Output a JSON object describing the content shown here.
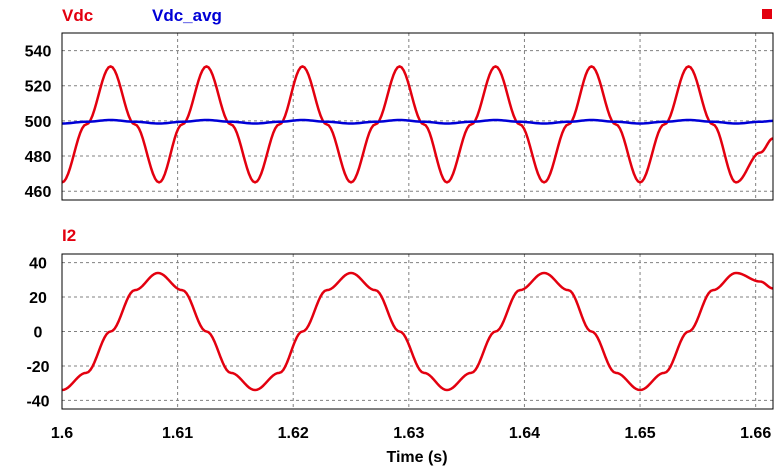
{
  "colors": {
    "vdc": "#e3000f",
    "vdc_avg": "#0000d6",
    "i2": "#e3000f",
    "grid": "#808080",
    "frame": "#000000",
    "background": "#ffffff"
  },
  "chart_data": [
    {
      "type": "line",
      "title": "",
      "xlabel": "",
      "ylabel": "",
      "xlim": [
        1.6,
        1.6615
      ],
      "ylim": [
        455,
        550
      ],
      "yticks": [
        "540",
        "520",
        "500",
        "480",
        "460"
      ],
      "ytick_values": [
        540,
        520,
        500,
        480,
        460
      ],
      "grid": true,
      "legend": "top-left",
      "series": [
        {
          "name": "Vdc",
          "color": "#e3000f",
          "x": [
            1.6,
            1.6021,
            1.6042,
            1.6063,
            1.6084,
            1.6104,
            1.6125,
            1.6146,
            1.6167,
            1.6188,
            1.6208,
            1.6229,
            1.625,
            1.6271,
            1.6292,
            1.6313,
            1.6333,
            1.6354,
            1.6375,
            1.6396,
            1.6417,
            1.6438,
            1.6458,
            1.6479,
            1.65,
            1.6521,
            1.6542,
            1.6563,
            1.6583,
            1.6604,
            1.6615
          ],
          "y": [
            465,
            498,
            531,
            498,
            465,
            498,
            531,
            498,
            465,
            498,
            531,
            498,
            465,
            498,
            531,
            498,
            465,
            498,
            531,
            498,
            465,
            498,
            531,
            498,
            465,
            498,
            531,
            498,
            465,
            482,
            490
          ]
        },
        {
          "name": "Vdc_avg",
          "color": "#0000d6",
          "x": [
            1.6,
            1.6021,
            1.6042,
            1.6063,
            1.6084,
            1.6104,
            1.6125,
            1.6146,
            1.6167,
            1.6188,
            1.6208,
            1.6229,
            1.625,
            1.6271,
            1.6292,
            1.6313,
            1.6333,
            1.6354,
            1.6375,
            1.6396,
            1.6417,
            1.6438,
            1.6458,
            1.6479,
            1.65,
            1.6521,
            1.6542,
            1.6563,
            1.6583,
            1.6604,
            1.6615
          ],
          "y": [
            498.5,
            499.5,
            500.5,
            499.5,
            498.5,
            499.5,
            500.5,
            499.5,
            498.5,
            499.5,
            500.5,
            499.5,
            498.5,
            499.5,
            500.5,
            499.5,
            498.5,
            499.5,
            500.5,
            499.5,
            498.5,
            499.5,
            500.5,
            499.5,
            498.5,
            499.5,
            500.5,
            499.5,
            498.5,
            499.5,
            500
          ]
        }
      ]
    },
    {
      "type": "line",
      "title": "",
      "xlabel": "Time (s)",
      "ylabel": "",
      "xlim": [
        1.6,
        1.6615
      ],
      "ylim": [
        -45,
        45
      ],
      "yticks": [
        "40",
        "20",
        "0",
        "-20",
        "-40"
      ],
      "ytick_values": [
        40,
        20,
        0,
        -20,
        -40
      ],
      "xticks": [
        "1.6",
        "1.61",
        "1.62",
        "1.63",
        "1.64",
        "1.65",
        "1.66"
      ],
      "xtick_values": [
        1.6,
        1.61,
        1.62,
        1.63,
        1.64,
        1.65,
        1.66
      ],
      "grid": true,
      "legend": "top-left",
      "series": [
        {
          "name": "I2",
          "color": "#e3000f",
          "x": [
            1.6,
            1.6021,
            1.6042,
            1.6063,
            1.6083,
            1.6104,
            1.6125,
            1.6146,
            1.6167,
            1.6188,
            1.6208,
            1.6229,
            1.625,
            1.6271,
            1.6292,
            1.6313,
            1.6333,
            1.6354,
            1.6375,
            1.6396,
            1.6417,
            1.6438,
            1.6458,
            1.6479,
            1.65,
            1.6521,
            1.6542,
            1.6563,
            1.6583,
            1.6604,
            1.6615
          ],
          "y": [
            -34,
            -24,
            0,
            24,
            34,
            24,
            0,
            -24,
            -34,
            -24,
            0,
            24,
            34,
            24,
            0,
            -24,
            -34,
            -24,
            0,
            24,
            34,
            24,
            0,
            -24,
            -34,
            -24,
            0,
            24,
            34,
            29,
            25
          ]
        }
      ]
    }
  ],
  "top_right_marker": {
    "color": "#e3000f"
  }
}
